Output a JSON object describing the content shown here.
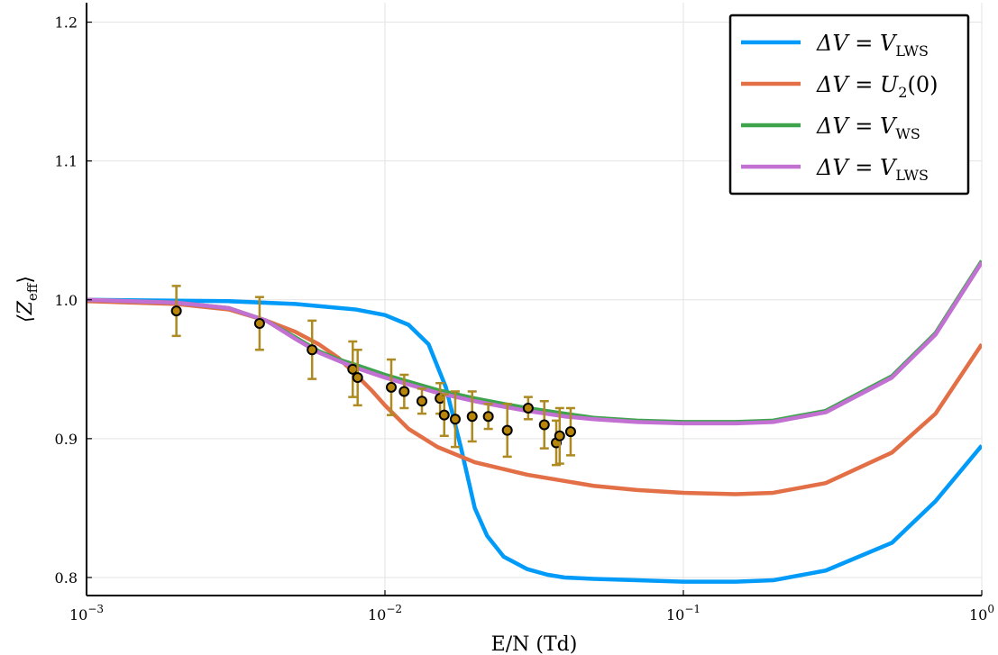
{
  "chart_data": {
    "type": "line",
    "xscale": "log",
    "xlim": [
      0.001,
      1
    ],
    "ylim": [
      0.787,
      1.214
    ],
    "grid": true,
    "legend_position": "top-right",
    "xlabel": "E/N (Td)",
    "ylabel": "⟨Z",
    "ylabel_sub": "eff",
    "ylabel_close": "⟩",
    "x_ticks": [
      {
        "value": 0.001,
        "base": "10",
        "exp": "−3"
      },
      {
        "value": 0.01,
        "base": "10",
        "exp": "−2"
      },
      {
        "value": 0.1,
        "base": "10",
        "exp": "−1"
      },
      {
        "value": 1,
        "base": "10",
        "exp": "0"
      }
    ],
    "y_ticks": [
      {
        "value": 0.8,
        "label": "0.8"
      },
      {
        "value": 0.9,
        "label": "0.9"
      },
      {
        "value": 1.0,
        "label": "1.0"
      },
      {
        "value": 1.1,
        "label": "1.1"
      },
      {
        "value": 1.2,
        "label": "1.2"
      }
    ],
    "series": [
      {
        "name": "ΔV = V_LWS",
        "legend_main": "ΔV = V",
        "legend_sub": "LWS",
        "color": "#009af9",
        "x": [
          0.001,
          0.003,
          0.005,
          0.008,
          0.01,
          0.012,
          0.014,
          0.016,
          0.018,
          0.02,
          0.022,
          0.025,
          0.03,
          0.035,
          0.04,
          0.05,
          0.07,
          0.1,
          0.15,
          0.2,
          0.3,
          0.5,
          0.7,
          1.0
        ],
        "y": [
          1.0,
          0.999,
          0.997,
          0.993,
          0.989,
          0.982,
          0.968,
          0.937,
          0.893,
          0.85,
          0.83,
          0.815,
          0.806,
          0.802,
          0.8,
          0.799,
          0.798,
          0.797,
          0.797,
          0.798,
          0.805,
          0.825,
          0.855,
          0.895
        ]
      },
      {
        "name": "ΔV = U_2(0)",
        "legend_main": "ΔV = U",
        "legend_sub": "2",
        "legend_suffix": "(0)",
        "color": "#e26f46",
        "x": [
          0.001,
          0.002,
          0.003,
          0.004,
          0.005,
          0.006,
          0.007,
          0.008,
          0.009,
          0.01,
          0.012,
          0.015,
          0.02,
          0.03,
          0.05,
          0.07,
          0.1,
          0.15,
          0.2,
          0.3,
          0.5,
          0.7,
          1.0
        ],
        "y": [
          0.999,
          0.997,
          0.993,
          0.985,
          0.977,
          0.968,
          0.958,
          0.946,
          0.935,
          0.924,
          0.907,
          0.894,
          0.883,
          0.874,
          0.866,
          0.863,
          0.861,
          0.86,
          0.861,
          0.868,
          0.89,
          0.918,
          0.968
        ]
      },
      {
        "name": "ΔV = V_WS",
        "legend_main": "ΔV = V",
        "legend_sub": "WS",
        "color": "#3da44d",
        "x": [
          0.001,
          0.002,
          0.003,
          0.004,
          0.005,
          0.006,
          0.007,
          0.008,
          0.01,
          0.012,
          0.015,
          0.02,
          0.025,
          0.03,
          0.04,
          0.05,
          0.07,
          0.1,
          0.15,
          0.2,
          0.3,
          0.5,
          0.7,
          1.0
        ],
        "y": [
          1.0,
          0.998,
          0.994,
          0.985,
          0.973,
          0.963,
          0.957,
          0.953,
          0.946,
          0.941,
          0.935,
          0.929,
          0.925,
          0.922,
          0.918,
          0.915,
          0.913,
          0.912,
          0.912,
          0.913,
          0.92,
          0.945,
          0.976,
          1.028
        ]
      },
      {
        "name": "ΔV = V_LWS",
        "legend_main": "ΔV = V",
        "legend_sub": "LWS",
        "color": "#c271d2",
        "x": [
          0.001,
          0.002,
          0.003,
          0.004,
          0.005,
          0.006,
          0.007,
          0.008,
          0.01,
          0.012,
          0.015,
          0.02,
          0.025,
          0.03,
          0.04,
          0.05,
          0.07,
          0.1,
          0.15,
          0.2,
          0.3,
          0.5,
          0.7,
          1.0
        ],
        "y": [
          1.0,
          0.998,
          0.994,
          0.985,
          0.972,
          0.962,
          0.956,
          0.951,
          0.944,
          0.939,
          0.933,
          0.927,
          0.923,
          0.92,
          0.916,
          0.914,
          0.912,
          0.911,
          0.911,
          0.912,
          0.919,
          0.944,
          0.975,
          1.027
        ]
      }
    ],
    "experimental": {
      "marker_color": "#b8860b",
      "errorbar_color": "#ad8a22",
      "points": [
        {
          "x": 0.002,
          "y": 0.992,
          "err": 0.018
        },
        {
          "x": 0.0038,
          "y": 0.983,
          "err": 0.019
        },
        {
          "x": 0.0057,
          "y": 0.964,
          "err": 0.021
        },
        {
          "x": 0.0078,
          "y": 0.95,
          "err": 0.02
        },
        {
          "x": 0.0081,
          "y": 0.944,
          "err": 0.02
        },
        {
          "x": 0.0105,
          "y": 0.937,
          "err": 0.02
        },
        {
          "x": 0.0116,
          "y": 0.934,
          "err": 0.012
        },
        {
          "x": 0.0133,
          "y": 0.927,
          "err": 0.009
        },
        {
          "x": 0.0153,
          "y": 0.929,
          "err": 0.011
        },
        {
          "x": 0.0158,
          "y": 0.917,
          "err": 0.015
        },
        {
          "x": 0.0172,
          "y": 0.914,
          "err": 0.02
        },
        {
          "x": 0.0196,
          "y": 0.916,
          "err": 0.018
        },
        {
          "x": 0.0222,
          "y": 0.916,
          "err": 0.009
        },
        {
          "x": 0.0257,
          "y": 0.906,
          "err": 0.019
        },
        {
          "x": 0.0302,
          "y": 0.922,
          "err": 0.008
        },
        {
          "x": 0.0342,
          "y": 0.91,
          "err": 0.017
        },
        {
          "x": 0.0375,
          "y": 0.897,
          "err": 0.016
        },
        {
          "x": 0.0385,
          "y": 0.902,
          "err": 0.02
        },
        {
          "x": 0.0419,
          "y": 0.905,
          "err": 0.017
        }
      ]
    }
  }
}
